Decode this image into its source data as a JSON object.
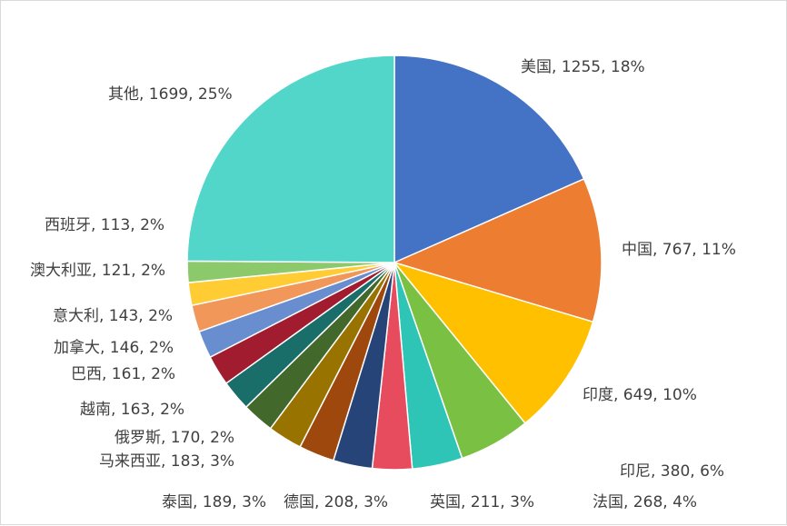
{
  "chart_data": {
    "type": "pie",
    "title": "",
    "slices": [
      {
        "name": "美国",
        "value": 1255,
        "percent": "18%",
        "label": "美国, 1255, 18%",
        "color": "#4472C4"
      },
      {
        "name": "中国",
        "value": 767,
        "percent": "11%",
        "label": "中国, 767, 11%",
        "color": "#ED7D31"
      },
      {
        "name": "印度",
        "value": 649,
        "percent": "10%",
        "label": "印度, 649, 10%",
        "color": "#FFC000"
      },
      {
        "name": "印尼",
        "value": 380,
        "percent": "6%",
        "label": "印尼, 380, 6%",
        "color": "#7AC143"
      },
      {
        "name": "法国",
        "value": 268,
        "percent": "4%",
        "label": "法国, 268, 4%",
        "color": "#2EC4B6"
      },
      {
        "name": "英国",
        "value": 211,
        "percent": "3%",
        "label": "英国, 211, 3%",
        "color": "#E74C5E"
      },
      {
        "name": "德国",
        "value": 208,
        "percent": "3%",
        "label": "德国, 208, 3%",
        "color": "#264478"
      },
      {
        "name": "泰国",
        "value": 189,
        "percent": "3%",
        "label": "泰国, 189, 3%",
        "color": "#9E480E"
      },
      {
        "name": "马来西亚",
        "value": 183,
        "percent": "3%",
        "label": "马来西亚, 183, 3%",
        "color": "#997300"
      },
      {
        "name": "俄罗斯",
        "value": 170,
        "percent": "2%",
        "label": "俄罗斯, 170, 2%",
        "color": "#43682B"
      },
      {
        "name": "越南",
        "value": 163,
        "percent": "2%",
        "label": "越南, 163, 2%",
        "color": "#1A6E6A"
      },
      {
        "name": "巴西",
        "value": 161,
        "percent": "2%",
        "label": "巴西, 161, 2%",
        "color": "#A01C2E"
      },
      {
        "name": "加拿大",
        "value": 146,
        "percent": "2%",
        "label": "加拿大, 146, 2%",
        "color": "#698ED0"
      },
      {
        "name": "意大利",
        "value": 143,
        "percent": "2%",
        "label": "意大利, 143, 2%",
        "color": "#F1975A"
      },
      {
        "name": "澳大利亚",
        "value": 121,
        "percent": "2%",
        "label": "澳大利亚, 121, 2%",
        "color": "#FFCD33"
      },
      {
        "name": "西班牙",
        "value": 113,
        "percent": "2%",
        "label": "西班牙, 113, 2%",
        "color": "#8CC96B"
      },
      {
        "name": "其他",
        "value": 1699,
        "percent": "25%",
        "label": "其他, 1699, 25%",
        "color": "#52D6CA"
      }
    ],
    "legend": "none",
    "start_angle": "12 o'clock, clockwise"
  }
}
